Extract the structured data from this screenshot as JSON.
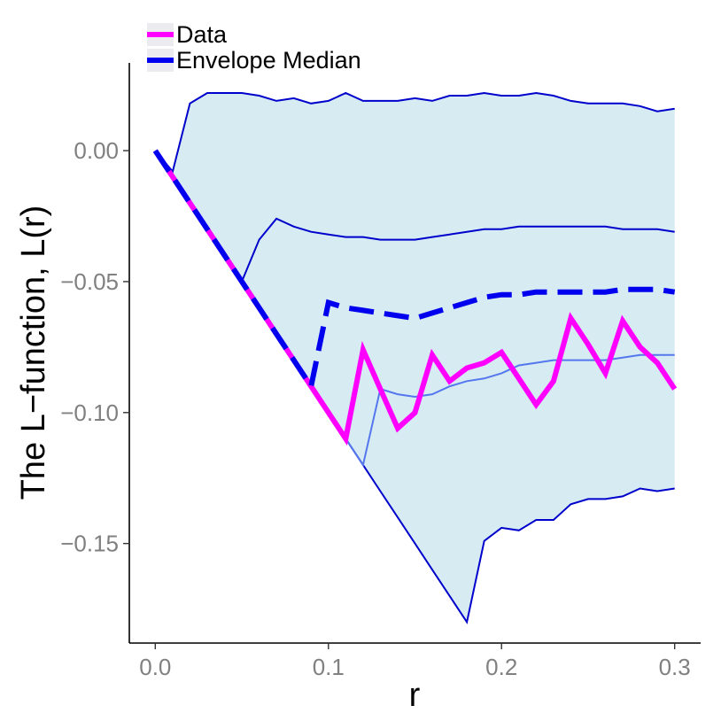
{
  "chart_data": {
    "type": "line",
    "title": "",
    "xlabel": "r",
    "ylabel": "The L−function, L(r)",
    "xlim": [
      -0.015,
      0.315
    ],
    "ylim": [
      -0.188,
      0.0335
    ],
    "xticks": [
      0.0,
      0.1,
      0.2,
      0.3
    ],
    "xtick_labels": [
      "0.0",
      "0.1",
      "0.2",
      "0.3"
    ],
    "yticks": [
      0.0,
      -0.05,
      -0.1,
      -0.15
    ],
    "ytick_labels": [
      "0.00",
      "−0.05",
      "−0.10",
      "−0.15"
    ],
    "grid": false,
    "legend_position": "top-left",
    "x": [
      0.0,
      0.01,
      0.02,
      0.03,
      0.04,
      0.05,
      0.06,
      0.07,
      0.08,
      0.09,
      0.1,
      0.11,
      0.12,
      0.13,
      0.14,
      0.15,
      0.16,
      0.17,
      0.18,
      0.19,
      0.2,
      0.21,
      0.22,
      0.23,
      0.24,
      0.25,
      0.26,
      0.27,
      0.28,
      0.29,
      0.3
    ],
    "envelope": {
      "upper": [
        0.0,
        -0.008,
        0.018,
        0.022,
        0.022,
        0.022,
        0.021,
        0.019,
        0.02,
        0.018,
        0.019,
        0.022,
        0.019,
        0.019,
        0.019,
        0.02,
        0.019,
        0.021,
        0.021,
        0.022,
        0.021,
        0.021,
        0.022,
        0.021,
        0.019,
        0.018,
        0.018,
        0.018,
        0.017,
        0.015,
        0.016
      ],
      "lower": [
        0.0,
        -0.01,
        -0.02,
        -0.03,
        -0.04,
        -0.05,
        -0.06,
        -0.07,
        -0.08,
        -0.09,
        -0.1,
        -0.11,
        -0.12,
        -0.13,
        -0.14,
        -0.15,
        -0.16,
        -0.17,
        -0.18,
        -0.149,
        -0.144,
        -0.145,
        -0.141,
        -0.141,
        -0.135,
        -0.133,
        -0.133,
        -0.132,
        -0.129,
        -0.13,
        -0.129
      ],
      "fill_color": "#d7ebf2",
      "line_color": "#0000cc"
    },
    "inner_upper": [
      0.0,
      -0.01,
      -0.02,
      -0.03,
      -0.04,
      -0.05,
      -0.034,
      -0.026,
      -0.029,
      -0.031,
      -0.032,
      -0.033,
      -0.033,
      -0.034,
      -0.034,
      -0.034,
      -0.033,
      -0.032,
      -0.031,
      -0.03,
      -0.03,
      -0.029,
      -0.029,
      -0.029,
      -0.029,
      -0.029,
      -0.029,
      -0.03,
      -0.03,
      -0.03,
      -0.031
    ],
    "inner_lower": [
      0.0,
      -0.01,
      -0.02,
      -0.03,
      -0.04,
      -0.05,
      -0.06,
      -0.07,
      -0.08,
      -0.09,
      -0.1,
      -0.11,
      -0.12,
      -0.091,
      -0.093,
      -0.094,
      -0.093,
      -0.09,
      -0.088,
      -0.087,
      -0.085,
      -0.082,
      -0.081,
      -0.08,
      -0.08,
      -0.08,
      -0.08,
      -0.079,
      -0.078,
      -0.078,
      -0.078
    ],
    "series": [
      {
        "name": "Data",
        "color": "#ff00ff",
        "values": [
          0.0,
          -0.01,
          -0.02,
          -0.03,
          -0.04,
          -0.05,
          -0.06,
          -0.07,
          -0.08,
          -0.09,
          -0.1,
          -0.11,
          -0.076,
          -0.091,
          -0.106,
          -0.1,
          -0.078,
          -0.088,
          -0.083,
          -0.081,
          -0.077,
          -0.087,
          -0.097,
          -0.088,
          -0.064,
          -0.074,
          -0.085,
          -0.065,
          -0.075,
          -0.081,
          -0.091
        ]
      },
      {
        "name": "Envelope Median",
        "color": "#0000ee",
        "values": [
          0.0,
          -0.01,
          -0.02,
          -0.03,
          -0.04,
          -0.05,
          -0.06,
          -0.07,
          -0.08,
          -0.09,
          -0.058,
          -0.06,
          -0.061,
          -0.062,
          -0.063,
          -0.064,
          -0.062,
          -0.06,
          -0.058,
          -0.056,
          -0.055,
          -0.055,
          -0.054,
          -0.054,
          -0.054,
          -0.054,
          -0.054,
          -0.053,
          -0.053,
          -0.053,
          -0.054
        ]
      }
    ]
  }
}
